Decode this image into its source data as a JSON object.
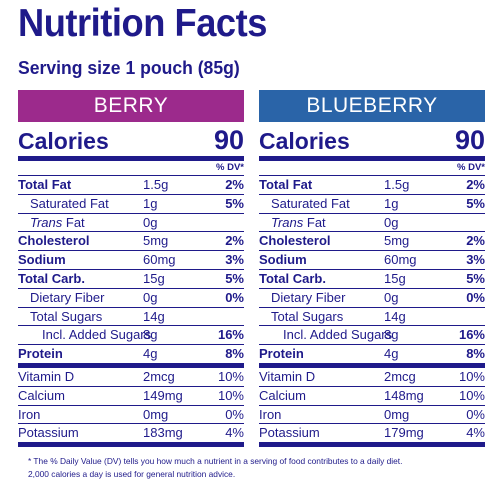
{
  "title": "Nutrition Facts",
  "serving": "Serving size 1 pouch (85g)",
  "colors": {
    "berry": "#9c2a8c",
    "blueberry": "#2a64a8",
    "text": "#1f1a8a"
  },
  "calories_label": "Calories",
  "dv_header": "% DV*",
  "footnote_line1": "* The % Daily Value (DV) tells you how much a nutrient in a serving of food contributes to a daily diet.",
  "footnote_line2": "2,000 calories a day is used for general nutrition advice.",
  "labels": {
    "total_fat": "Total Fat",
    "sat_fat": "Saturated Fat",
    "trans_fat_italic": "Trans",
    "trans_fat_rest": " Fat",
    "cholesterol": "Cholesterol",
    "sodium": "Sodium",
    "total_carb": "Total Carb.",
    "fiber": "Dietary Fiber",
    "sugars": "Total Sugars",
    "added_sugars": "Incl. Added Sugars",
    "protein": "Protein",
    "vitd": "Vitamin D",
    "calcium": "Calcium",
    "iron": "Iron",
    "potassium": "Potassium"
  },
  "berry": {
    "name": "BERRY",
    "calories": "90",
    "total_fat": {
      "amt": "1.5g",
      "dv": "2%"
    },
    "sat_fat": {
      "amt": "1g",
      "dv": "5%"
    },
    "trans_fat": {
      "amt": "0g"
    },
    "cholesterol": {
      "amt": "5mg",
      "dv": "2%"
    },
    "sodium": {
      "amt": "60mg",
      "dv": "3%"
    },
    "total_carb": {
      "amt": "15g",
      "dv": "5%"
    },
    "fiber": {
      "amt": "0g",
      "dv": "0%"
    },
    "sugars": {
      "amt": "14g"
    },
    "added_sugars": {
      "amt": "8g",
      "dv": "16%"
    },
    "protein": {
      "amt": "4g",
      "dv": "8%"
    },
    "vitd": {
      "amt": "2mcg",
      "dv": "10%"
    },
    "calcium": {
      "amt": "149mg",
      "dv": "10%"
    },
    "iron": {
      "amt": "0mg",
      "dv": "0%"
    },
    "potassium": {
      "amt": "183mg",
      "dv": "4%"
    }
  },
  "blueberry": {
    "name": "BLUEBERRY",
    "calories": "90",
    "total_fat": {
      "amt": "1.5g",
      "dv": "2%"
    },
    "sat_fat": {
      "amt": "1g",
      "dv": "5%"
    },
    "trans_fat": {
      "amt": "0g"
    },
    "cholesterol": {
      "amt": "5mg",
      "dv": "2%"
    },
    "sodium": {
      "amt": "60mg",
      "dv": "3%"
    },
    "total_carb": {
      "amt": "15g",
      "dv": "5%"
    },
    "fiber": {
      "amt": "0g",
      "dv": "0%"
    },
    "sugars": {
      "amt": "14g"
    },
    "added_sugars": {
      "amt": "8g",
      "dv": "16%"
    },
    "protein": {
      "amt": "4g",
      "dv": "8%"
    },
    "vitd": {
      "amt": "2mcg",
      "dv": "10%"
    },
    "calcium": {
      "amt": "148mg",
      "dv": "10%"
    },
    "iron": {
      "amt": "0mg",
      "dv": "0%"
    },
    "potassium": {
      "amt": "179mg",
      "dv": "4%"
    }
  }
}
